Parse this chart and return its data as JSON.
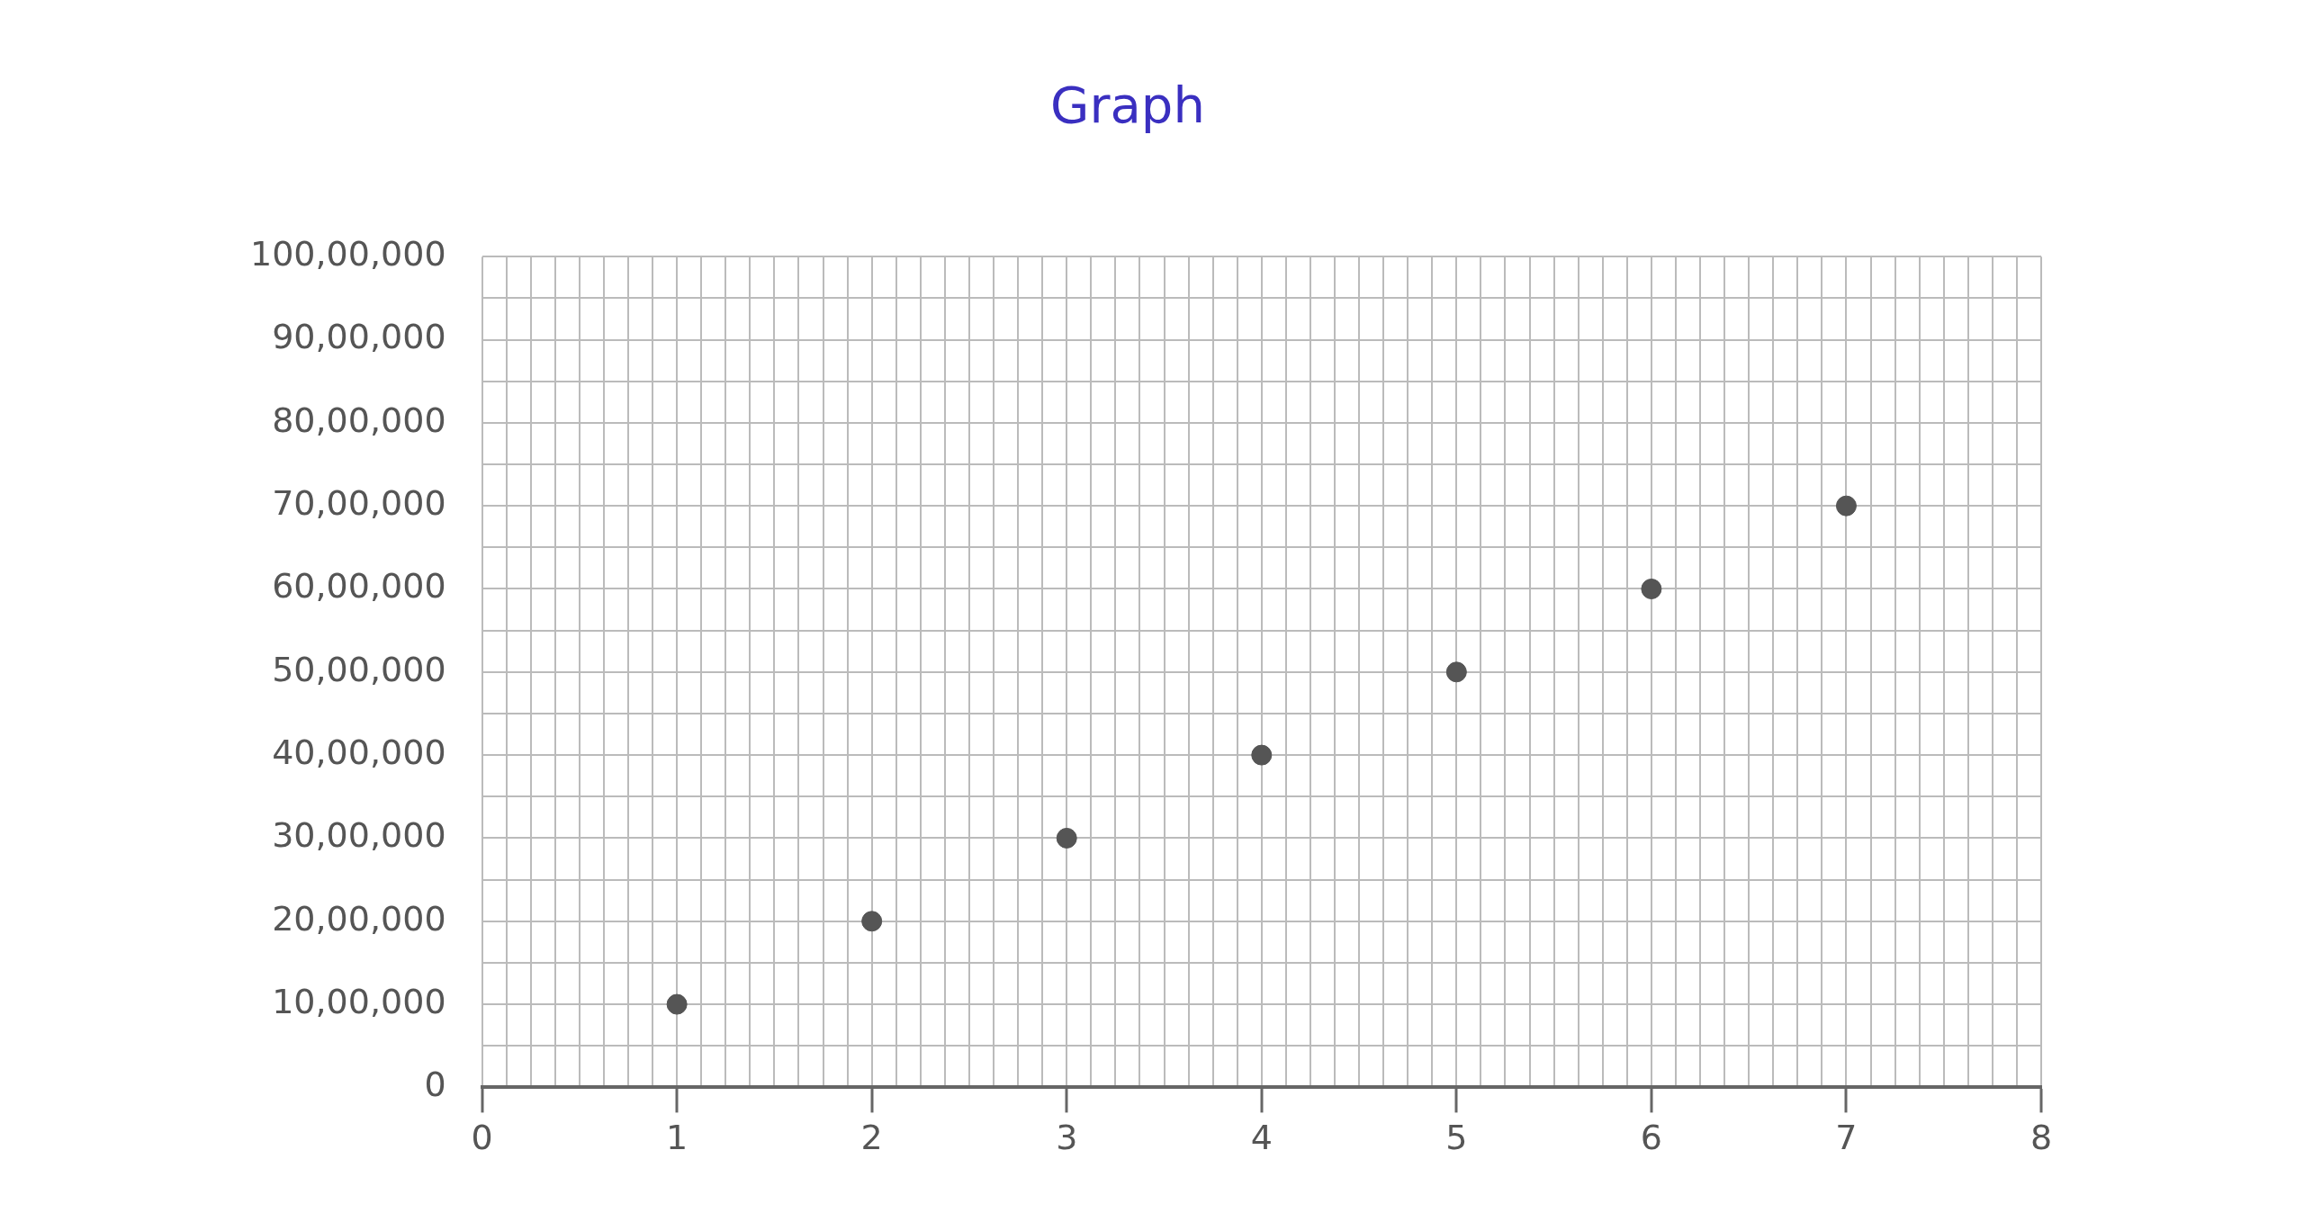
{
  "chart_data": {
    "type": "scatter",
    "title": "Graph",
    "x": [
      1,
      2,
      3,
      4,
      5,
      6,
      7
    ],
    "series": [
      {
        "color": "#555555",
        "values": [
          1000000,
          2000000,
          3000000,
          4000000,
          5000000,
          6000000,
          7000000
        ]
      }
    ],
    "xlim": [
      0,
      8
    ],
    "xticks": [
      0,
      {
        "value": 0.125,
        "label": null
      },
      {
        "value": 0.25,
        "label": null
      },
      {
        "value": 0.375,
        "label": null
      },
      {
        "value": 0.5,
        "label": null
      },
      {
        "value": 0.625,
        "label": null
      },
      {
        "value": 0.75,
        "label": null
      },
      {
        "value": 0.875,
        "label": null
      },
      1,
      {
        "value": 1.125,
        "label": null
      },
      {
        "value": 1.25,
        "label": null
      },
      {
        "value": 1.375,
        "label": null
      },
      {
        "value": 1.5,
        "label": null
      },
      {
        "value": 1.625,
        "label": null
      },
      {
        "value": 1.75,
        "label": null
      },
      {
        "value": 1.875,
        "label": null
      },
      2,
      {
        "value": 2.125,
        "label": null
      },
      {
        "value": 2.25,
        "label": null
      },
      {
        "value": 2.375,
        "label": null
      },
      {
        "value": 2.5,
        "label": null
      },
      {
        "value": 2.625,
        "label": null
      },
      {
        "value": 2.75,
        "label": null
      },
      {
        "value": 2.875,
        "label": null
      },
      3,
      {
        "value": 3.125,
        "label": null
      },
      {
        "value": 3.25,
        "label": null
      },
      {
        "value": 3.375,
        "label": null
      },
      {
        "value": 3.5,
        "label": null
      },
      {
        "value": 3.625,
        "label": null
      },
      {
        "value": 3.75,
        "label": null
      },
      {
        "value": 3.875,
        "label": null
      },
      4,
      {
        "value": 4.125,
        "label": null
      },
      {
        "value": 4.25,
        "label": null
      },
      {
        "value": 4.375,
        "label": null
      },
      {
        "value": 4.5,
        "label": null
      },
      {
        "value": 4.625,
        "label": null
      },
      {
        "value": 4.75,
        "label": null
      },
      {
        "value": 4.875,
        "label": null
      },
      5,
      {
        "value": 5.125,
        "label": null
      },
      {
        "value": 5.25,
        "label": null
      },
      {
        "value": 5.375,
        "label": null
      },
      {
        "value": 5.5,
        "label": null
      },
      {
        "value": 5.625,
        "label": null
      },
      {
        "value": 5.75,
        "label": null
      },
      {
        "value": 5.875,
        "label": null
      },
      6,
      {
        "value": 6.125,
        "label": null
      },
      {
        "value": 6.25,
        "label": null
      },
      {
        "value": 6.375,
        "label": null
      },
      {
        "value": 6.5,
        "label": null
      },
      {
        "value": 6.625,
        "label": null
      },
      {
        "value": 6.75,
        "label": null
      },
      {
        "value": 6.875,
        "label": null
      },
      7,
      {
        "value": 7.125,
        "label": null
      },
      {
        "value": 7.25,
        "label": null
      },
      {
        "value": 7.375,
        "label": null
      },
      {
        "value": 7.5,
        "label": null
      },
      {
        "value": 7.625,
        "label": null
      },
      {
        "value": 7.75,
        "label": null
      },
      {
        "value": 7.875,
        "label": null
      },
      8
    ],
    "ylim": [
      0,
      10000000
    ],
    "yticks": [
      0,
      {
        "value": 500000,
        "label": null
      },
      {
        "value": 1000000,
        "label": "10,00,000"
      },
      {
        "value": 1500000,
        "label": null
      },
      {
        "value": 2000000,
        "label": "20,00,000"
      },
      {
        "value": 2500000,
        "label": null
      },
      {
        "value": 3000000,
        "label": "30,00,000"
      },
      {
        "value": 3500000,
        "label": null
      },
      {
        "value": 4000000,
        "label": "40,00,000"
      },
      {
        "value": 4500000,
        "label": null
      },
      {
        "value": 5000000,
        "label": "50,00,000"
      },
      {
        "value": 5500000,
        "label": null
      },
      {
        "value": 6000000,
        "label": "60,00,000"
      },
      {
        "value": 6500000,
        "label": null
      },
      {
        "value": 7000000,
        "label": "70,00,000"
      },
      {
        "value": 7500000,
        "label": null
      },
      {
        "value": 8000000,
        "label": "80,00,000"
      },
      {
        "value": 8500000,
        "label": null
      },
      {
        "value": 9000000,
        "label": "90,00,000"
      },
      {
        "value": 9500000,
        "label": null
      },
      {
        "value": 10000000,
        "label": "100,00,000"
      }
    ],
    "grid": true,
    "legend": false,
    "marker": "circle"
  }
}
